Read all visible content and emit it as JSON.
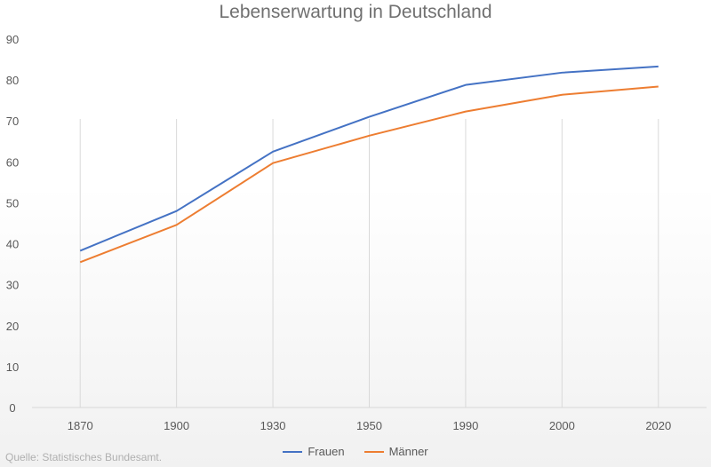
{
  "chart_data": {
    "type": "line",
    "title": "Lebenserwartung  in Deutschland",
    "xlabel": "",
    "ylabel": "",
    "categories": [
      "1870",
      "1900",
      "1930",
      "1950",
      "1990",
      "2000",
      "2020"
    ],
    "ylim": [
      0,
      90
    ],
    "yticks": [
      "0",
      "10",
      "20",
      "30",
      "40",
      "50",
      "60",
      "70",
      "80",
      "90"
    ],
    "grid": "vertical",
    "legend": "bottom",
    "series": [
      {
        "name": "Frauen",
        "color": "#4472c4",
        "values": [
          38.3,
          48.0,
          62.5,
          71.0,
          78.8,
          81.8,
          83.3
        ]
      },
      {
        "name": "Männer",
        "color": "#ed7d31",
        "values": [
          35.5,
          44.6,
          59.7,
          66.4,
          72.3,
          76.4,
          78.4
        ]
      }
    ],
    "source": "Quelle: Statistisches Bundesamt."
  }
}
